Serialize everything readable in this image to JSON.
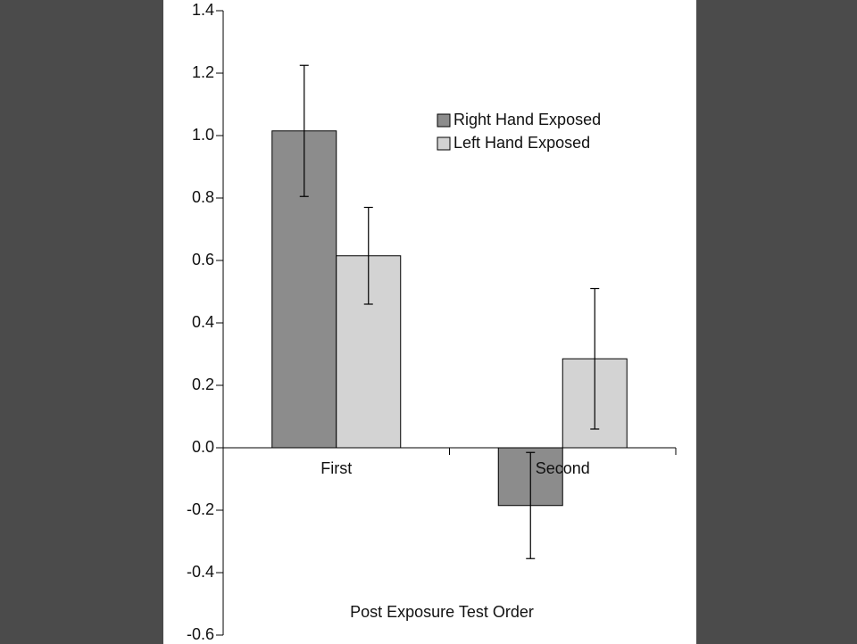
{
  "chart_data": {
    "type": "bar",
    "x_label": "Post Exposure Test Order",
    "categories": [
      "First",
      "Second"
    ],
    "series": [
      {
        "name": "Right Hand Exposed",
        "color": "#8c8c8c",
        "values": [
          1.015,
          -0.185
        ],
        "errors": [
          0.21,
          0.17
        ]
      },
      {
        "name": "Left Hand Exposed",
        "color": "#d3d3d3",
        "values": [
          0.615,
          0.285
        ],
        "errors": [
          0.155,
          0.225
        ]
      }
    ],
    "ylim": [
      -0.6,
      1.4
    ],
    "yticks": [
      1.4,
      1.2,
      {
        "value": 1.0,
        "label": "1.0"
      },
      0.8,
      0.6,
      0.4,
      0.2,
      {
        "value": 0.0,
        "label": "0.0"
      },
      -0.2,
      -0.4,
      -0.6
    ],
    "legend": "upper right"
  }
}
